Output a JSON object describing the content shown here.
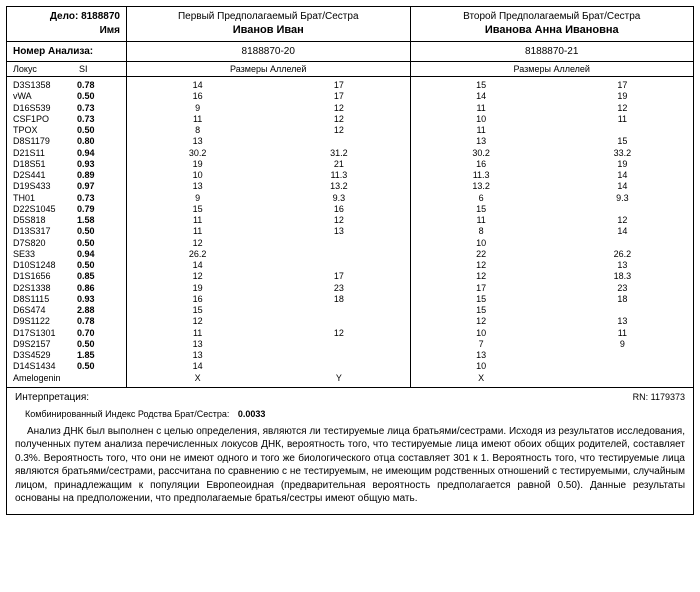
{
  "header": {
    "case_label": "Дело:",
    "case_no": "8188870",
    "name_label": "Имя",
    "sib1_title": "Первый Предполагаемый Брат/Сестра",
    "sib1_name": "Иванов Иван",
    "sib2_title": "Второй Предполагаемый Брат/Сестра",
    "sib2_name": "Иванова Анна Ивановна",
    "analysis_label": "Номер Анализа:",
    "analysis1": "8188870-20",
    "analysis2": "8188870-21",
    "col_locus": "Локус",
    "col_si": "SI",
    "col_alleles": "Размеры Аллелей"
  },
  "loci": [
    {
      "locus": "D3S1358",
      "si": "0.78",
      "p1a": "14",
      "p1b": "17",
      "p2a": "15",
      "p2b": "17"
    },
    {
      "locus": "vWA",
      "si": "0.50",
      "p1a": "16",
      "p1b": "17",
      "p2a": "14",
      "p2b": "19"
    },
    {
      "locus": "D16S539",
      "si": "0.73",
      "p1a": "9",
      "p1b": "12",
      "p2a": "11",
      "p2b": "12"
    },
    {
      "locus": "CSF1PO",
      "si": "0.73",
      "p1a": "11",
      "p1b": "12",
      "p2a": "10",
      "p2b": "11"
    },
    {
      "locus": "TPOX",
      "si": "0.50",
      "p1a": "8",
      "p1b": "12",
      "p2a": "11",
      "p2b": ""
    },
    {
      "locus": "D8S1179",
      "si": "0.80",
      "p1a": "13",
      "p1b": "",
      "p2a": "13",
      "p2b": "15"
    },
    {
      "locus": "D21S11",
      "si": "0.94",
      "p1a": "30.2",
      "p1b": "31.2",
      "p2a": "30.2",
      "p2b": "33.2"
    },
    {
      "locus": "D18S51",
      "si": "0.93",
      "p1a": "19",
      "p1b": "21",
      "p2a": "16",
      "p2b": "19"
    },
    {
      "locus": "D2S441",
      "si": "0.89",
      "p1a": "10",
      "p1b": "11.3",
      "p2a": "11.3",
      "p2b": "14"
    },
    {
      "locus": "D19S433",
      "si": "0.97",
      "p1a": "13",
      "p1b": "13.2",
      "p2a": "13.2",
      "p2b": "14"
    },
    {
      "locus": "TH01",
      "si": "0.73",
      "p1a": "9",
      "p1b": "9.3",
      "p2a": "6",
      "p2b": "9.3"
    },
    {
      "locus": "D22S1045",
      "si": "0.79",
      "p1a": "15",
      "p1b": "16",
      "p2a": "15",
      "p2b": ""
    },
    {
      "locus": "D5S818",
      "si": "1.58",
      "p1a": "11",
      "p1b": "12",
      "p2a": "11",
      "p2b": "12"
    },
    {
      "locus": "D13S317",
      "si": "0.50",
      "p1a": "11",
      "p1b": "13",
      "p2a": "8",
      "p2b": "14"
    },
    {
      "locus": "D7S820",
      "si": "0.50",
      "p1a": "12",
      "p1b": "",
      "p2a": "10",
      "p2b": ""
    },
    {
      "locus": "SE33",
      "si": "0.94",
      "p1a": "26.2",
      "p1b": "",
      "p2a": "22",
      "p2b": "26.2"
    },
    {
      "locus": "D10S1248",
      "si": "0.50",
      "p1a": "14",
      "p1b": "",
      "p2a": "12",
      "p2b": "13"
    },
    {
      "locus": "D1S1656",
      "si": "0.85",
      "p1a": "12",
      "p1b": "17",
      "p2a": "12",
      "p2b": "18.3"
    },
    {
      "locus": "D2S1338",
      "si": "0.86",
      "p1a": "19",
      "p1b": "23",
      "p2a": "17",
      "p2b": "23"
    },
    {
      "locus": "D8S1115",
      "si": "0.93",
      "p1a": "16",
      "p1b": "18",
      "p2a": "15",
      "p2b": "18"
    },
    {
      "locus": "D6S474",
      "si": "2.88",
      "p1a": "15",
      "p1b": "",
      "p2a": "15",
      "p2b": ""
    },
    {
      "locus": "D9S1122",
      "si": "0.78",
      "p1a": "12",
      "p1b": "",
      "p2a": "12",
      "p2b": "13"
    },
    {
      "locus": "D17S1301",
      "si": "0.70",
      "p1a": "11",
      "p1b": "12",
      "p2a": "10",
      "p2b": "11"
    },
    {
      "locus": "D9S2157",
      "si": "0.50",
      "p1a": "13",
      "p1b": "",
      "p2a": "7",
      "p2b": "9"
    },
    {
      "locus": "D3S4529",
      "si": "1.85",
      "p1a": "13",
      "p1b": "",
      "p2a": "13",
      "p2b": ""
    },
    {
      "locus": "D14S1434",
      "si": "0.50",
      "p1a": "14",
      "p1b": "",
      "p2a": "10",
      "p2b": ""
    },
    {
      "locus": "Amelogenin",
      "si": "",
      "p1a": "X",
      "p1b": "Y",
      "p2a": "X",
      "p2b": ""
    }
  ],
  "interp": {
    "label": "Интерпретация:",
    "rn_label": "RN:",
    "rn_value": "1179373",
    "combi_label": "Комбинированный Индекс Родства Брат/Сестра:",
    "combi_value": "0.0033",
    "paragraph": "Анализ ДНК был выполнен с целью определения, являются ли тестируемые лица братьями/сестрами. Исходя из результатов исследования, полученных путем анализа перечисленных локусов ДНК, вероятность того, что тестируемые лица имеют обоих общих родителей, составляет 0.3%. Вероятность того, что они не имеют одного и того же биологического отца составляет 301 к 1. Вероятность того, что тестируемые лица являются братьями/сестрами, рассчитана по сравнению с не тестируемым, не имеющим родственных отношений с тестируемыми, случайным лицом, принадлежащим к популяции Европеоидная (предварительная вероятность предполагается равной 0.50). Данные результаты основаны на предположении, что предполагаемые братья/сестры имеют общую мать."
  }
}
